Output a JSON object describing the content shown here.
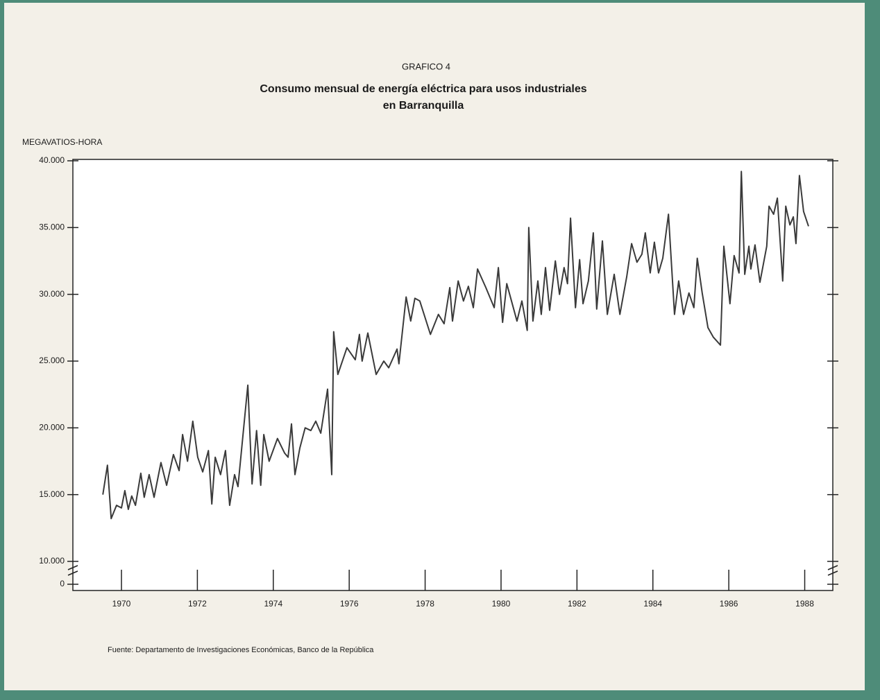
{
  "chart_data": {
    "type": "line",
    "label": "GRAFICO 4",
    "title": [
      "Consumo mensual de energía eléctrica para usos industriales",
      "en Barranquilla"
    ],
    "y_label": "MEGAVATIOS-HORA",
    "source": "Fuente: Departamento de Investigaciones Económicas, Banco de la República",
    "axis_break": true,
    "x": [
      1969.51,
      1969.63,
      1969.73,
      1969.87,
      1970.0,
      1970.09,
      1970.18,
      1970.27,
      1970.37,
      1970.51,
      1970.6,
      1970.73,
      1970.86,
      1971.04,
      1971.19,
      1971.37,
      1971.52,
      1971.61,
      1971.74,
      1971.88,
      1972.01,
      1972.14,
      1972.29,
      1972.38,
      1972.47,
      1972.61,
      1972.74,
      1972.85,
      1972.98,
      1973.07,
      1973.33,
      1973.44,
      1973.56,
      1973.67,
      1973.75,
      1973.89,
      1974.11,
      1974.3,
      1974.39,
      1974.48,
      1974.57,
      1974.7,
      1974.84,
      1974.99,
      1975.12,
      1975.25,
      1975.43,
      1975.54,
      1975.59,
      1975.7,
      1975.94,
      1976.16,
      1976.27,
      1976.34,
      1976.49,
      1976.71,
      1976.91,
      1977.04,
      1977.26,
      1977.31,
      1977.5,
      1977.62,
      1977.73,
      1977.86,
      1978.14,
      1978.35,
      1978.5,
      1978.65,
      1978.72,
      1978.87,
      1979.01,
      1979.14,
      1979.27,
      1979.38,
      1979.6,
      1979.82,
      1979.93,
      1980.04,
      1980.15,
      1980.42,
      1980.55,
      1980.69,
      1980.73,
      1980.84,
      1980.97,
      1981.06,
      1981.17,
      1981.28,
      1981.43,
      1981.54,
      1981.66,
      1981.75,
      1981.83,
      1981.96,
      1982.07,
      1982.16,
      1982.3,
      1982.43,
      1982.52,
      1982.67,
      1982.8,
      1982.98,
      1983.13,
      1983.31,
      1983.44,
      1983.58,
      1983.71,
      1983.8,
      1983.93,
      1984.04,
      1984.15,
      1984.26,
      1984.41,
      1984.57,
      1984.68,
      1984.81,
      1984.95,
      1985.08,
      1985.17,
      1985.3,
      1985.45,
      1985.59,
      1985.78,
      1985.87,
      1986.03,
      1986.14,
      1986.27,
      1986.33,
      1986.42,
      1986.53,
      1986.58,
      1986.69,
      1986.82,
      1987.0,
      1987.06,
      1987.18,
      1987.28,
      1987.42,
      1987.5,
      1987.61,
      1987.7,
      1987.77,
      1987.86,
      1987.97,
      1988.1
    ],
    "values": [
      15000,
      17200,
      13200,
      14200,
      14000,
      15300,
      13900,
      14900,
      14200,
      16600,
      14800,
      16500,
      14800,
      17400,
      15700,
      18000,
      16800,
      19500,
      17500,
      20500,
      17800,
      16700,
      18300,
      14300,
      17800,
      16500,
      18300,
      14200,
      16500,
      15600,
      23200,
      15800,
      19800,
      15700,
      19500,
      17500,
      19200,
      18100,
      17800,
      20300,
      16500,
      18500,
      20000,
      19800,
      20500,
      19600,
      22900,
      16500,
      27200,
      24000,
      26000,
      25100,
      27000,
      25000,
      27100,
      24000,
      25000,
      24500,
      25900,
      24800,
      29800,
      28000,
      29700,
      29500,
      27000,
      28500,
      27800,
      30500,
      28000,
      31000,
      29500,
      30600,
      29000,
      31900,
      30500,
      29000,
      32000,
      27900,
      30800,
      28000,
      29500,
      27300,
      35000,
      28000,
      31000,
      28500,
      32000,
      28800,
      32500,
      30000,
      32000,
      30800,
      35700,
      29000,
      32600,
      29300,
      31000,
      34600,
      28900,
      34000,
      28500,
      31500,
      28500,
      31300,
      33800,
      32400,
      33000,
      34600,
      31600,
      33900,
      31600,
      32700,
      36000,
      28500,
      31000,
      28500,
      30100,
      29000,
      32700,
      30100,
      27500,
      26800,
      26200,
      33600,
      29300,
      32900,
      31600,
      39200,
      31500,
      33600,
      31900,
      33700,
      30900,
      33600,
      36600,
      36000,
      37200,
      31000,
      36600,
      35200,
      35800,
      33800,
      38900,
      36200,
      35100
    ],
    "color": "#3a3a3a",
    "xlim": [
      1968.72,
      1988.74
    ],
    "xticks": [
      1970,
      1972,
      1974,
      1976,
      1978,
      1980,
      1982,
      1984,
      1986,
      1988
    ],
    "ylim": [
      10000,
      40000
    ],
    "yticks": [
      0,
      {
        "value": 10000,
        "label": "10.000"
      },
      {
        "value": 15000,
        "label": "15.000"
      },
      {
        "value": 20000,
        "label": "20.000"
      },
      {
        "value": 25000,
        "label": "25.000"
      },
      {
        "value": 30000,
        "label": "30.000"
      },
      {
        "value": 35000,
        "label": "35.000"
      },
      {
        "value": 40000,
        "label": "40.000"
      }
    ],
    "grid": false
  }
}
